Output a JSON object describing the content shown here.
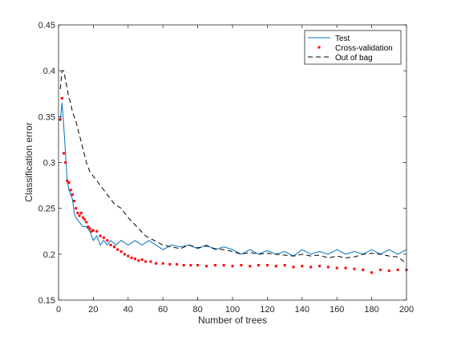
{
  "chart_data": {
    "type": "line",
    "title": "",
    "xlabel": "Number of trees",
    "ylabel": "Classification error",
    "xlim": [
      0,
      200
    ],
    "ylim": [
      0.15,
      0.45
    ],
    "xticks": [
      0,
      20,
      40,
      60,
      80,
      100,
      120,
      140,
      160,
      180,
      200
    ],
    "xtick_labels": [
      "0",
      "20",
      "40",
      "60",
      "80",
      "100",
      "120",
      "140",
      "160",
      "180",
      "200"
    ],
    "yticks": [
      0.15,
      0.2,
      0.25,
      0.3,
      0.35,
      0.4,
      0.45
    ],
    "ytick_labels": [
      "0.15",
      "0.2",
      "0.25",
      "0.3",
      "0.35",
      "0.4",
      "0.45"
    ],
    "grid": false,
    "legend_position": "top-right",
    "series": [
      {
        "name": "Test",
        "style": "solid-line",
        "color": "#0072bd",
        "x": [
          1,
          2,
          3,
          4,
          5,
          6,
          7,
          8,
          9,
          10,
          12,
          14,
          16,
          18,
          20,
          22,
          24,
          26,
          28,
          30,
          33,
          36,
          40,
          44,
          48,
          52,
          56,
          60,
          65,
          70,
          75,
          80,
          85,
          90,
          95,
          100,
          105,
          110,
          115,
          120,
          125,
          130,
          135,
          140,
          145,
          150,
          155,
          160,
          165,
          170,
          175,
          180,
          185,
          190,
          195,
          200
        ],
        "y": [
          0.345,
          0.365,
          0.34,
          0.31,
          0.28,
          0.27,
          0.265,
          0.26,
          0.245,
          0.24,
          0.235,
          0.23,
          0.23,
          0.225,
          0.215,
          0.22,
          0.21,
          0.215,
          0.21,
          0.215,
          0.21,
          0.215,
          0.21,
          0.215,
          0.21,
          0.215,
          0.21,
          0.205,
          0.21,
          0.208,
          0.21,
          0.206,
          0.21,
          0.205,
          0.208,
          0.205,
          0.2,
          0.205,
          0.2,
          0.204,
          0.2,
          0.203,
          0.198,
          0.205,
          0.2,
          0.203,
          0.2,
          0.205,
          0.2,
          0.203,
          0.2,
          0.205,
          0.2,
          0.205,
          0.2,
          0.205
        ]
      },
      {
        "name": "Cross-validation",
        "style": "dots",
        "color": "#ff0000",
        "x": [
          1,
          2,
          3,
          4,
          5,
          6,
          7,
          8,
          9,
          10,
          11,
          12,
          13,
          14,
          15,
          16,
          17,
          18,
          19,
          20,
          22,
          24,
          26,
          28,
          30,
          32,
          34,
          36,
          38,
          40,
          42,
          44,
          46,
          48,
          50,
          53,
          56,
          60,
          64,
          68,
          72,
          76,
          80,
          85,
          90,
          95,
          100,
          105,
          110,
          115,
          120,
          125,
          130,
          135,
          140,
          145,
          150,
          155,
          160,
          165,
          170,
          175,
          180,
          185,
          190,
          195,
          200
        ],
        "y": [
          0.347,
          0.37,
          0.31,
          0.3,
          0.28,
          0.278,
          0.27,
          0.265,
          0.258,
          0.25,
          0.245,
          0.242,
          0.245,
          0.24,
          0.238,
          0.235,
          0.23,
          0.228,
          0.225,
          0.226,
          0.225,
          0.22,
          0.218,
          0.215,
          0.21,
          0.208,
          0.205,
          0.203,
          0.2,
          0.198,
          0.196,
          0.195,
          0.193,
          0.194,
          0.192,
          0.192,
          0.19,
          0.19,
          0.189,
          0.189,
          0.188,
          0.188,
          0.188,
          0.187,
          0.188,
          0.188,
          0.187,
          0.188,
          0.187,
          0.188,
          0.188,
          0.187,
          0.188,
          0.186,
          0.187,
          0.186,
          0.187,
          0.186,
          0.185,
          0.185,
          0.184,
          0.183,
          0.18,
          0.183,
          0.182,
          0.183,
          0.183
        ]
      },
      {
        "name": "Out of bag",
        "style": "dashed-line",
        "color": "#000000",
        "x": [
          1,
          2,
          3,
          4,
          5,
          6,
          7,
          8,
          9,
          10,
          12,
          14,
          16,
          18,
          20,
          24,
          28,
          32,
          36,
          40,
          45,
          50,
          55,
          60,
          65,
          70,
          75,
          80,
          85,
          90,
          95,
          100,
          105,
          110,
          115,
          120,
          125,
          130,
          135,
          140,
          145,
          150,
          155,
          160,
          165,
          170,
          175,
          180,
          185,
          190,
          195,
          200
        ],
        "y": [
          0.38,
          0.4,
          0.4,
          0.39,
          0.38,
          0.37,
          0.365,
          0.355,
          0.35,
          0.345,
          0.33,
          0.315,
          0.3,
          0.29,
          0.285,
          0.275,
          0.265,
          0.255,
          0.25,
          0.24,
          0.23,
          0.22,
          0.215,
          0.21,
          0.208,
          0.206,
          0.21,
          0.207,
          0.209,
          0.206,
          0.205,
          0.203,
          0.2,
          0.202,
          0.2,
          0.201,
          0.2,
          0.199,
          0.198,
          0.2,
          0.198,
          0.199,
          0.196,
          0.198,
          0.196,
          0.197,
          0.2,
          0.201,
          0.2,
          0.198,
          0.197,
          0.19
        ]
      }
    ]
  }
}
